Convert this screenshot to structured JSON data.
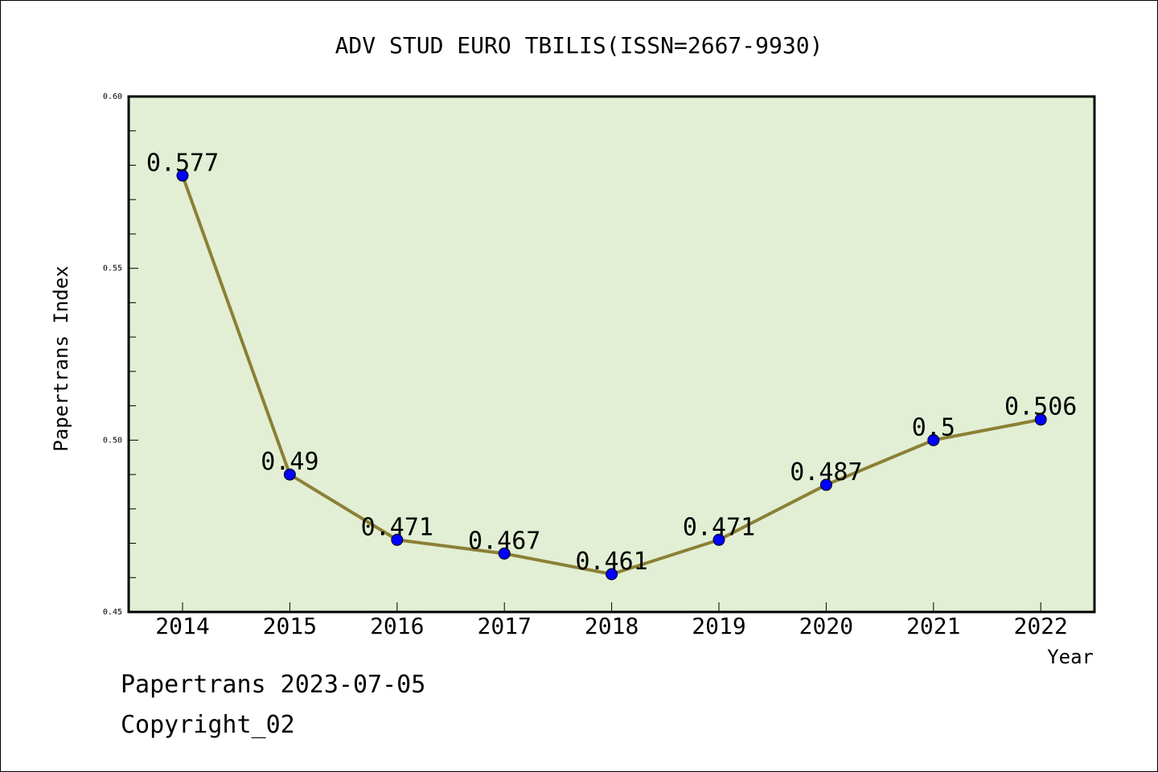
{
  "chart_data": {
    "type": "line",
    "title": "ADV STUD EURO TBILIS(ISSN=2667-9930)",
    "xlabel": "Year",
    "ylabel": "Papertrans Index",
    "categories": [
      "2014",
      "2015",
      "2016",
      "2017",
      "2018",
      "2019",
      "2020",
      "2021",
      "2022"
    ],
    "series": [
      {
        "values": [
          0.577,
          0.49,
          0.471,
          0.467,
          0.461,
          0.471,
          0.487,
          0.5,
          0.506
        ],
        "labels": [
          "0.577",
          "0.49",
          "0.471",
          "0.467",
          "0.461",
          "0.471",
          "0.487",
          "0.5",
          "0.506"
        ]
      }
    ],
    "ylim": [
      0.45,
      0.6
    ],
    "yticks": [
      0.45,
      0.5,
      0.55,
      0.6
    ],
    "ytick_labels": [
      "0.45",
      "0.50",
      "0.55",
      "0.60"
    ],
    "yminor_step": 0.01,
    "grid": false,
    "legend": "none",
    "colors": {
      "line": "#8B8036",
      "marker": "#0000FF",
      "plot_background": "#E2EFD4"
    }
  },
  "footer": {
    "date_line": "Papertrans 2023-07-05",
    "copyright": "Copyright_02"
  }
}
